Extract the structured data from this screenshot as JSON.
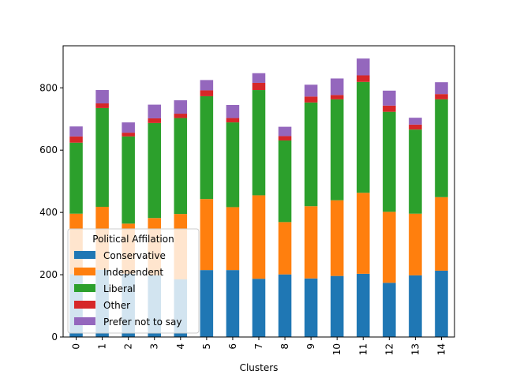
{
  "chart_data": {
    "type": "bar",
    "stacked": true,
    "title": "",
    "xlabel": "Clusters",
    "ylabel": "",
    "categories": [
      "0",
      "1",
      "2",
      "3",
      "4",
      "5",
      "6",
      "7",
      "8",
      "9",
      "10",
      "11",
      "12",
      "13",
      "14"
    ],
    "ylim": [
      0,
      935
    ],
    "yticks": [
      0,
      200,
      400,
      600,
      800
    ],
    "legend_title": "Political Affilation",
    "legend_position": "lower-left",
    "series": [
      {
        "name": "Conservative",
        "color": "#1f77b4",
        "values": [
          202,
          216,
          203,
          198,
          185,
          215,
          215,
          187,
          201,
          188,
          196,
          203,
          174,
          198,
          213
        ]
      },
      {
        "name": "Independent",
        "color": "#ff7f0e",
        "values": [
          194,
          202,
          161,
          184,
          210,
          228,
          202,
          268,
          168,
          232,
          243,
          260,
          228,
          198,
          236
        ]
      },
      {
        "name": "Liberal",
        "color": "#2ca02c",
        "values": [
          228,
          317,
          280,
          305,
          308,
          330,
          272,
          338,
          262,
          333,
          324,
          356,
          321,
          270,
          314
        ]
      },
      {
        "name": "Other",
        "color": "#d62728",
        "values": [
          20,
          15,
          12,
          15,
          14,
          19,
          14,
          23,
          14,
          19,
          14,
          21,
          20,
          16,
          17
        ]
      },
      {
        "name": "Prefer not to say",
        "color": "#9467bd",
        "values": [
          32,
          43,
          33,
          44,
          43,
          33,
          42,
          31,
          30,
          38,
          53,
          54,
          48,
          22,
          38
        ]
      }
    ]
  }
}
